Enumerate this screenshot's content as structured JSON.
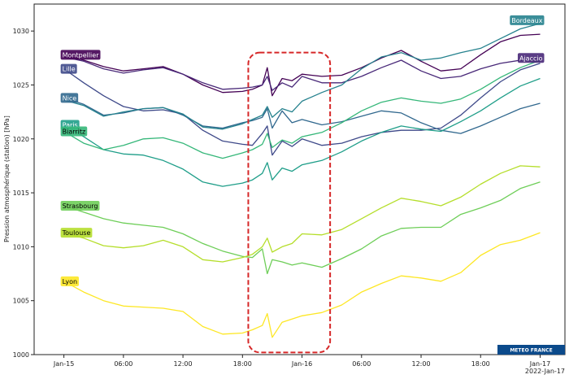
{
  "chart_data": {
    "type": "line",
    "ylabel": "Pression atmosphérique (station) [hPa]",
    "ylim": [
      1000,
      1032.5
    ],
    "xlim": [
      "2022-01-14T21:00",
      "2022-01-17T02:30"
    ],
    "yticks": [
      1000,
      1005,
      1010,
      1015,
      1020,
      1025,
      1030
    ],
    "xticks": [
      {
        "t": "2022-01-15T00:00",
        "label": "Jan-15"
      },
      {
        "t": "2022-01-15T06:00",
        "label": "06:00"
      },
      {
        "t": "2022-01-15T12:00",
        "label": "12:00"
      },
      {
        "t": "2022-01-15T18:00",
        "label": "18:00"
      },
      {
        "t": "2022-01-16T00:00",
        "label": "Jan-16"
      },
      {
        "t": "2022-01-16T06:00",
        "label": "06:00"
      },
      {
        "t": "2022-01-16T12:00",
        "label": "12:00"
      },
      {
        "t": "2022-01-16T18:00",
        "label": "18:00"
      },
      {
        "t": "2022-01-17T00:00",
        "label": "Jan-17"
      }
    ],
    "x_offset_label": "2022-Jan-17",
    "grid": false,
    "x": [
      "2022-01-15T00:00",
      "2022-01-15T02:00",
      "2022-01-15T04:00",
      "2022-01-15T06:00",
      "2022-01-15T08:00",
      "2022-01-15T10:00",
      "2022-01-15T12:00",
      "2022-01-15T14:00",
      "2022-01-15T16:00",
      "2022-01-15T18:00",
      "2022-01-15T19:00",
      "2022-01-15T20:00",
      "2022-01-15T20:30",
      "2022-01-15T21:00",
      "2022-01-15T22:00",
      "2022-01-15T23:00",
      "2022-01-16T00:00",
      "2022-01-16T02:00",
      "2022-01-16T04:00",
      "2022-01-16T06:00",
      "2022-01-16T08:00",
      "2022-01-16T10:00",
      "2022-01-16T12:00",
      "2022-01-16T14:00",
      "2022-01-16T16:00",
      "2022-01-16T18:00",
      "2022-01-16T20:00",
      "2022-01-16T22:00",
      "2022-01-17T00:00"
    ],
    "series": [
      {
        "name": "Montpellier",
        "color": "#440154",
        "text_color": "#ffffff",
        "label_at": "start",
        "values": [
          1027.8,
          1027.3,
          1026.7,
          1026.3,
          1026.5,
          1026.7,
          1026.0,
          1025.0,
          1024.3,
          1024.4,
          1024.6,
          1025.0,
          1026.6,
          1024.0,
          1025.6,
          1025.4,
          1026.0,
          1025.8,
          1025.9,
          1026.6,
          1027.5,
          1028.2,
          1027.2,
          1026.3,
          1026.5,
          1027.8,
          1029.0,
          1029.6,
          1029.7
        ]
      },
      {
        "name": "Ajaccio",
        "color": "#482878",
        "text_color": "#ffffff",
        "label_at": "end",
        "values": [
          1027.6,
          1027.2,
          1026.5,
          1026.1,
          1026.4,
          1026.6,
          1026.0,
          1025.2,
          1024.6,
          1024.7,
          1024.8,
          1025.0,
          1025.8,
          1024.5,
          1025.2,
          1024.8,
          1025.8,
          1025.2,
          1025.2,
          1025.8,
          1026.6,
          1027.3,
          1026.3,
          1025.6,
          1025.8,
          1026.5,
          1027.0,
          1027.3,
          1027.2
        ]
      },
      {
        "name": "Lille",
        "color": "#3e4989",
        "text_color": "#ffffff",
        "label_at": "start",
        "values": [
          1026.5,
          1025.2,
          1024.0,
          1023.0,
          1022.6,
          1022.7,
          1022.3,
          1020.8,
          1019.8,
          1019.5,
          1019.4,
          1020.5,
          1021.2,
          1018.5,
          1019.8,
          1019.3,
          1020.0,
          1019.4,
          1019.6,
          1020.2,
          1020.6,
          1020.8,
          1020.8,
          1021.0,
          1022.2,
          1023.8,
          1025.3,
          1026.4,
          1027.0
        ]
      },
      {
        "name": "Nice",
        "color": "#31688e",
        "text_color": "#ffffff",
        "label_at": "start",
        "values": [
          1023.8,
          1023.2,
          1022.2,
          1022.4,
          1022.8,
          1022.9,
          1022.2,
          1021.2,
          1021.0,
          1021.5,
          1021.7,
          1022.0,
          1022.8,
          1021.0,
          1022.6,
          1021.5,
          1021.8,
          1021.3,
          1021.6,
          1022.1,
          1022.6,
          1022.4,
          1021.5,
          1020.8,
          1020.5,
          1021.2,
          1022.0,
          1022.8,
          1023.3
        ]
      },
      {
        "name": "Bordeaux",
        "color": "#26828e",
        "text_color": "#ffffff",
        "label_at": "end",
        "values": [
          1023.6,
          1023.1,
          1022.1,
          1022.5,
          1022.8,
          1022.9,
          1022.3,
          1021.1,
          1020.9,
          1021.4,
          1021.8,
          1022.2,
          1023.0,
          1022.0,
          1022.8,
          1022.5,
          1023.5,
          1024.3,
          1025.0,
          1026.5,
          1027.6,
          1028.0,
          1027.3,
          1027.5,
          1028.0,
          1028.4,
          1029.3,
          1030.2,
          1030.7
        ]
      },
      {
        "name": "Paris",
        "color": "#1f9e89",
        "text_color": "#ffffff",
        "label_at": "start",
        "values": [
          1021.3,
          1020.2,
          1019.0,
          1018.6,
          1018.5,
          1018.0,
          1017.2,
          1016.0,
          1015.6,
          1015.9,
          1016.2,
          1016.8,
          1017.8,
          1016.2,
          1017.3,
          1017.0,
          1017.6,
          1018.0,
          1018.8,
          1019.8,
          1020.6,
          1021.2,
          1020.9,
          1020.7,
          1021.6,
          1022.6,
          1023.8,
          1024.9,
          1025.6
        ]
      },
      {
        "name": "Biarritz",
        "color": "#35b779",
        "text_color": "#000000",
        "label_at": "start",
        "values": [
          1020.7,
          1019.6,
          1019.0,
          1019.4,
          1020.0,
          1020.1,
          1019.6,
          1018.7,
          1018.2,
          1018.7,
          1019.0,
          1019.5,
          1020.5,
          1019.2,
          1019.9,
          1019.6,
          1020.2,
          1020.6,
          1021.5,
          1022.6,
          1023.4,
          1023.8,
          1023.5,
          1023.3,
          1023.7,
          1024.6,
          1025.7,
          1026.6,
          1027.3
        ]
      },
      {
        "name": "Strasbourg",
        "color": "#6ece58",
        "text_color": "#000000",
        "label_at": "start",
        "values": [
          1013.8,
          1013.2,
          1012.6,
          1012.2,
          1012.0,
          1011.8,
          1011.2,
          1010.3,
          1009.6,
          1009.1,
          1009.0,
          1009.8,
          1007.5,
          1008.8,
          1008.6,
          1008.3,
          1008.5,
          1008.1,
          1008.9,
          1009.8,
          1011.0,
          1011.7,
          1011.8,
          1011.8,
          1013.0,
          1013.6,
          1014.3,
          1015.4,
          1016.0
        ]
      },
      {
        "name": "Toulouse",
        "color": "#b5de2b",
        "text_color": "#000000",
        "label_at": "start",
        "values": [
          1011.3,
          1010.8,
          1010.1,
          1009.9,
          1010.1,
          1010.6,
          1010.0,
          1008.8,
          1008.6,
          1009.0,
          1009.3,
          1010.0,
          1010.8,
          1009.5,
          1010.0,
          1010.3,
          1011.2,
          1011.1,
          1011.6,
          1012.6,
          1013.6,
          1014.5,
          1014.2,
          1013.8,
          1014.6,
          1015.8,
          1016.8,
          1017.5,
          1017.4
        ]
      },
      {
        "name": "Lyon",
        "color": "#fde725",
        "text_color": "#000000",
        "label_at": "start",
        "values": [
          1006.8,
          1005.8,
          1005.0,
          1004.5,
          1004.4,
          1004.3,
          1004.0,
          1002.6,
          1001.9,
          1002.0,
          1002.3,
          1002.7,
          1003.8,
          1001.6,
          1003.0,
          1003.3,
          1003.6,
          1003.9,
          1004.6,
          1005.8,
          1006.6,
          1007.3,
          1007.1,
          1006.8,
          1007.6,
          1009.2,
          1010.2,
          1010.6,
          1011.3
        ]
      }
    ],
    "annotation": {
      "shape": "dashed-rounded-rectangle",
      "color": "#d62728",
      "x_range": [
        "2022-01-15T18:35",
        "2022-01-16T02:50"
      ],
      "y_range": [
        1000.2,
        1028.0
      ]
    }
  },
  "watermark": {
    "text": "METEO FRANCE",
    "color": "#0b4a8b"
  }
}
